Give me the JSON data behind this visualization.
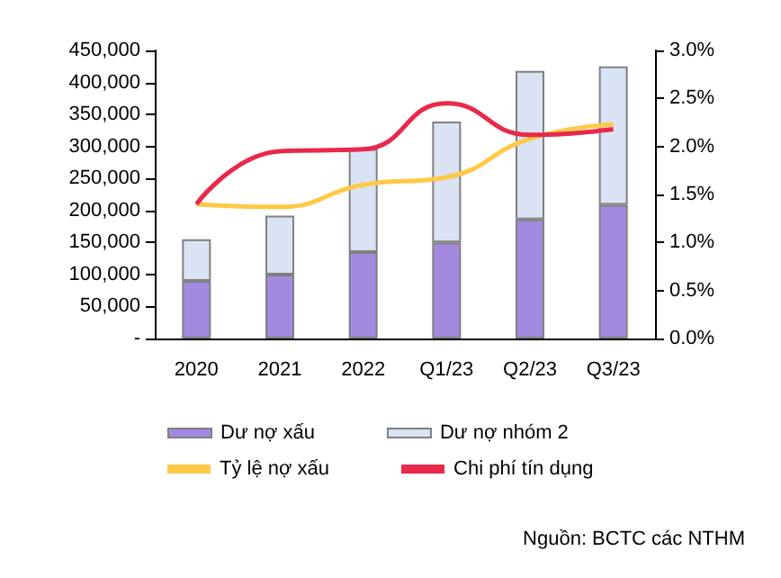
{
  "chart_data": {
    "type": "bar",
    "stacked": true,
    "categories": [
      "2020",
      "2021",
      "2022",
      "Q1/23",
      "Q2/23",
      "Q3/23"
    ],
    "series": [
      {
        "name": "Dư nợ xấu",
        "color": "#a389e0",
        "values": [
          90000,
          100000,
          135000,
          150000,
          186000,
          209000
        ]
      },
      {
        "name": "Dư nợ nhóm 2",
        "color": "#dae3f3",
        "values": [
          65000,
          92000,
          161000,
          189000,
          232000,
          216000
        ]
      },
      {
        "name": "Tỷ lệ nợ xấu",
        "type": "line",
        "axis": "y2",
        "color": "#ffc947",
        "values": [
          1.4,
          1.37,
          1.6,
          1.68,
          2.08,
          2.23
        ]
      },
      {
        "name": "Chi phí tín dụng",
        "type": "line",
        "axis": "y2",
        "color": "#e8294a",
        "values": [
          1.4,
          1.95,
          1.97,
          2.45,
          2.12,
          2.18
        ]
      }
    ],
    "ylim": [
      0,
      450000
    ],
    "yticks": [
      {
        "value": 0,
        "label": "-"
      },
      {
        "value": 50000,
        "label": "50,000"
      },
      {
        "value": 100000,
        "label": "100,000"
      },
      {
        "value": 150000,
        "label": "150,000"
      },
      {
        "value": 200000,
        "label": "200,000"
      },
      {
        "value": 250000,
        "label": "250,000"
      },
      {
        "value": 300000,
        "label": "300,000"
      },
      {
        "value": 350000,
        "label": "350,000"
      },
      {
        "value": 400000,
        "label": "400,000"
      },
      {
        "value": 450000,
        "label": "450,000"
      }
    ],
    "y2lim": [
      0,
      3
    ],
    "y2ticks": [
      {
        "value": 0,
        "label": "0.0%"
      },
      {
        "value": 0.5,
        "label": "0.5%"
      },
      {
        "value": 1,
        "label": "1.0%"
      },
      {
        "value": 1.5,
        "label": "1.5%"
      },
      {
        "value": 2,
        "label": "2.0%"
      },
      {
        "value": 2.5,
        "label": "2.5%"
      },
      {
        "value": 3,
        "label": "3.0%"
      }
    ],
    "grid": false,
    "legend": "bottom",
    "marker": "none",
    "annotations": [
      "Nguồn: BCTC các NTHM"
    ]
  }
}
